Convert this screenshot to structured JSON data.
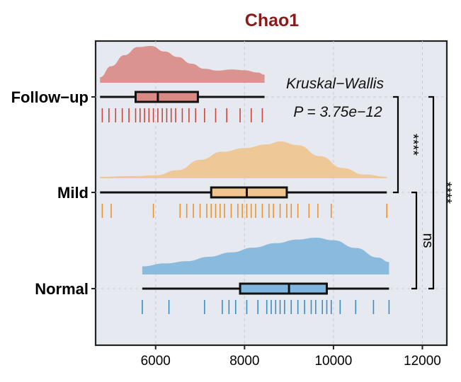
{
  "chart_data": {
    "type": "raincloud",
    "title": "Chao1",
    "xlabel": "",
    "ylabel": "",
    "xlim": [
      4650,
      12550
    ],
    "xticks": [
      6000,
      8000,
      10000,
      12000
    ],
    "xtick_labels": [
      "6000",
      "8000",
      "10000",
      "12000"
    ],
    "grid": true,
    "categories": [
      "Follow−up",
      "Mild",
      "Normal"
    ],
    "groups": [
      {
        "category": "Follow−up",
        "color": "#c9463d",
        "fill": "#d98a84",
        "box": {
          "whisker_low": 4750,
          "q1": 5550,
          "median": 6050,
          "q3": 6950,
          "whisker_high": 8450
        },
        "points": [
          4800,
          4950,
          5100,
          5250,
          5400,
          5550,
          5650,
          5750,
          5850,
          5950,
          6050,
          6150,
          6250,
          6350,
          6450,
          6600,
          6750,
          6900,
          7100,
          7350,
          7600,
          7900,
          8150,
          8400
        ],
        "density": [
          [
            4750,
            0.15
          ],
          [
            5000,
            0.45
          ],
          [
            5300,
            0.75
          ],
          [
            5600,
            0.97
          ],
          [
            5900,
            1.0
          ],
          [
            6200,
            0.85
          ],
          [
            6500,
            0.7
          ],
          [
            6800,
            0.52
          ],
          [
            7100,
            0.38
          ],
          [
            7400,
            0.33
          ],
          [
            7700,
            0.36
          ],
          [
            8000,
            0.34
          ],
          [
            8300,
            0.28
          ],
          [
            8450,
            0.22
          ]
        ]
      },
      {
        "category": "Mild",
        "color": "#e8952f",
        "fill": "#f0c48e",
        "box": {
          "whisker_low": 4750,
          "q1": 7250,
          "median": 8050,
          "q3": 8950,
          "whisker_high": 11200
        },
        "points": [
          4800,
          5000,
          5950,
          6550,
          6700,
          6850,
          7000,
          7150,
          7250,
          7350,
          7450,
          7550,
          7700,
          7850,
          7950,
          8050,
          8150,
          8250,
          8400,
          8550,
          8650,
          8800,
          8950,
          9050,
          9200,
          9450,
          9650,
          9950,
          11200
        ],
        "density": [
          [
            4750,
            0.04
          ],
          [
            5500,
            0.06
          ],
          [
            6000,
            0.08
          ],
          [
            6500,
            0.22
          ],
          [
            7000,
            0.5
          ],
          [
            7500,
            0.72
          ],
          [
            8000,
            0.82
          ],
          [
            8500,
            0.92
          ],
          [
            8800,
            1.0
          ],
          [
            9200,
            0.9
          ],
          [
            9700,
            0.6
          ],
          [
            10200,
            0.28
          ],
          [
            10700,
            0.1
          ],
          [
            11200,
            0.04
          ]
        ]
      },
      {
        "category": "Normal",
        "color": "#3a8ec4",
        "fill": "#7fb6dd",
        "box": {
          "whisker_low": 5700,
          "q1": 7900,
          "median": 9000,
          "q3": 9850,
          "whisker_high": 11250
        },
        "points": [
          5700,
          6300,
          7100,
          7500,
          7650,
          7800,
          8050,
          8300,
          8500,
          8600,
          8700,
          8800,
          8900,
          9050,
          9200,
          9350,
          9500,
          9600,
          9750,
          9850,
          9950,
          10150,
          10500,
          10900,
          11250
        ],
        "density": [
          [
            5700,
            0.22
          ],
          [
            6200,
            0.3
          ],
          [
            6700,
            0.36
          ],
          [
            7200,
            0.48
          ],
          [
            7700,
            0.6
          ],
          [
            8200,
            0.73
          ],
          [
            8700,
            0.85
          ],
          [
            9200,
            0.95
          ],
          [
            9600,
            1.0
          ],
          [
            10000,
            0.93
          ],
          [
            10500,
            0.72
          ],
          [
            11000,
            0.46
          ],
          [
            11250,
            0.34
          ]
        ]
      }
    ],
    "annotations": [
      "Kruskal−Wallis",
      "P = 3.75e−12"
    ],
    "comparisons": [
      {
        "groups": [
          "Follow−up",
          "Mild"
        ],
        "label": "****"
      },
      {
        "groups": [
          "Mild",
          "Normal"
        ],
        "label": "ns"
      },
      {
        "groups": [
          "Follow−up",
          "Normal"
        ],
        "label": "****"
      }
    ]
  }
}
